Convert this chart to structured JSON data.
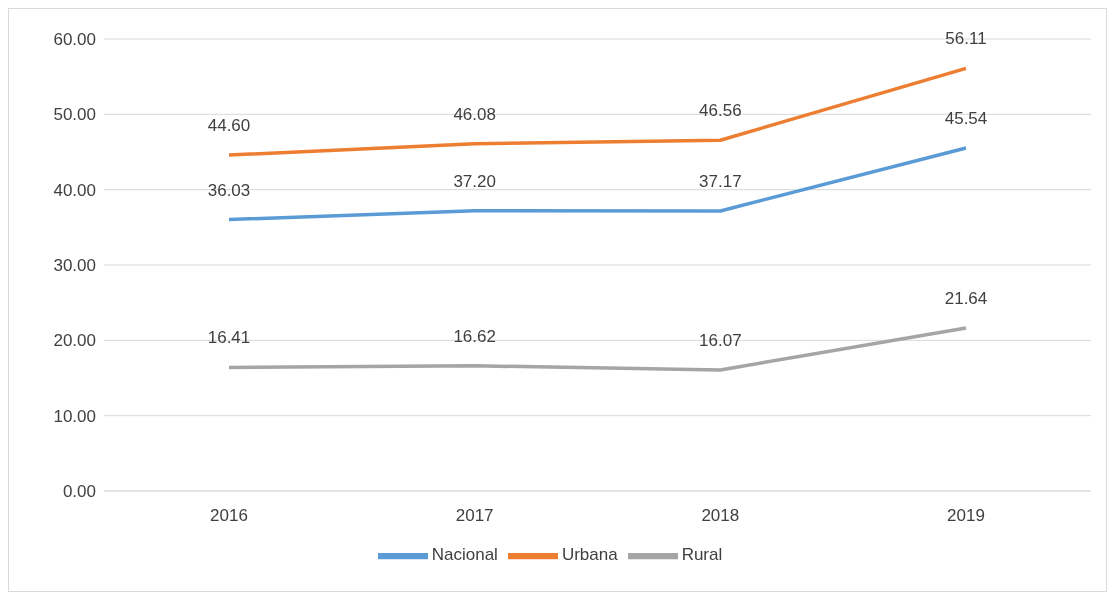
{
  "chart_data": {
    "type": "line",
    "categories": [
      "2016",
      "2017",
      "2018",
      "2019"
    ],
    "series": [
      {
        "name": "Nacional",
        "color": "#5b9bd5",
        "values": [
          36.03,
          37.2,
          37.17,
          45.54
        ],
        "value_labels": [
          "36.03",
          "37.20",
          "37.17",
          "45.54"
        ]
      },
      {
        "name": "Urbana",
        "color": "#ed7d31",
        "values": [
          44.6,
          46.08,
          46.56,
          56.11
        ],
        "value_labels": [
          "44.60",
          "46.08",
          "46.56",
          "56.11"
        ]
      },
      {
        "name": "Rural",
        "color": "#a5a5a5",
        "values": [
          16.41,
          16.62,
          16.07,
          21.64
        ],
        "value_labels": [
          "16.41",
          "16.62",
          "16.07",
          "21.64"
        ]
      }
    ],
    "ylim": [
      0,
      60
    ],
    "yticks": [
      {
        "value": 0,
        "label": "0.00"
      },
      {
        "value": 10,
        "label": "10.00"
      },
      {
        "value": 20,
        "label": "20.00"
      },
      {
        "value": 30,
        "label": "30.00"
      },
      {
        "value": 40,
        "label": "40.00"
      },
      {
        "value": 50,
        "label": "50.00"
      },
      {
        "value": 60,
        "label": "60.00"
      }
    ],
    "grid": "y",
    "legend": "bottom",
    "marker": "none",
    "line_style": "solid"
  }
}
